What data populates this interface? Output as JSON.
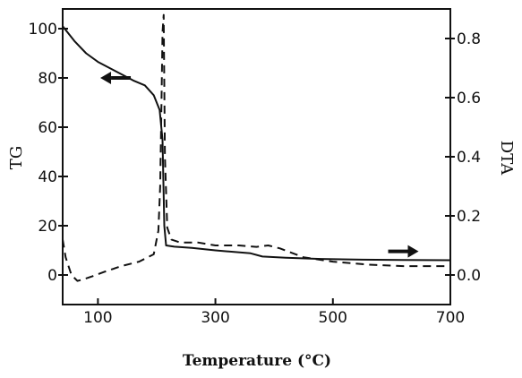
{
  "chart_data": {
    "type": "line",
    "title": "",
    "xlabel": "Temperature (°C)",
    "ylabel": "TG",
    "y2label": "DTA",
    "xlim": [
      40,
      700
    ],
    "ylim": [
      -12,
      108
    ],
    "y2lim": [
      -0.1,
      0.9
    ],
    "x_ticks": [
      100,
      300,
      500,
      700
    ],
    "y_ticks": [
      0,
      20,
      40,
      60,
      80,
      100
    ],
    "y2_ticks": [
      0.0,
      0.2,
      0.4,
      0.6,
      0.8
    ],
    "x_tick_labels": [
      "100",
      "300",
      "500",
      "700"
    ],
    "y_tick_labels": [
      "0",
      "20",
      "40",
      "60",
      "80",
      "100"
    ],
    "y2_tick_labels": [
      "0.0",
      "0.2",
      "0.4",
      "0.6",
      "0.8"
    ],
    "grid": false,
    "legend": "none",
    "series": [
      {
        "axis": "left",
        "style": "solid",
        "x": [
          40,
          60,
          80,
          100,
          120,
          140,
          160,
          180,
          195,
          205,
          210,
          213,
          216,
          230,
          260,
          300,
          360,
          380,
          420,
          480,
          550,
          620,
          700
        ],
        "y": [
          101,
          95,
          90,
          86.5,
          84,
          81.5,
          79,
          77,
          73,
          67,
          55,
          20,
          12,
          11.5,
          11,
          10,
          8.8,
          7.5,
          7,
          6.5,
          6.2,
          6.1,
          6
        ]
      },
      {
        "axis": "right",
        "style": "dashed",
        "x": [
          40,
          45,
          55,
          65,
          75,
          90,
          110,
          140,
          170,
          195,
          203,
          206,
          208,
          210,
          212,
          214,
          218,
          225,
          240,
          270,
          300,
          340,
          370,
          390,
          410,
          450,
          500,
          560,
          620,
          700
        ],
        "y": [
          0.12,
          0.06,
          0.0,
          -0.02,
          -0.015,
          -0.005,
          0.01,
          0.03,
          0.045,
          0.07,
          0.15,
          0.3,
          0.55,
          0.82,
          0.88,
          0.4,
          0.16,
          0.12,
          0.11,
          0.11,
          0.1,
          0.1,
          0.095,
          0.1,
          0.09,
          0.06,
          0.045,
          0.035,
          0.03,
          0.03
        ]
      }
    ],
    "annotations": [
      {
        "type": "arrow",
        "direction": "left",
        "x": 130,
        "y": 80,
        "refers_to": "TG"
      },
      {
        "type": "arrow",
        "direction": "right",
        "x": 620,
        "y": 0.08,
        "refers_to": "DTA"
      }
    ]
  }
}
